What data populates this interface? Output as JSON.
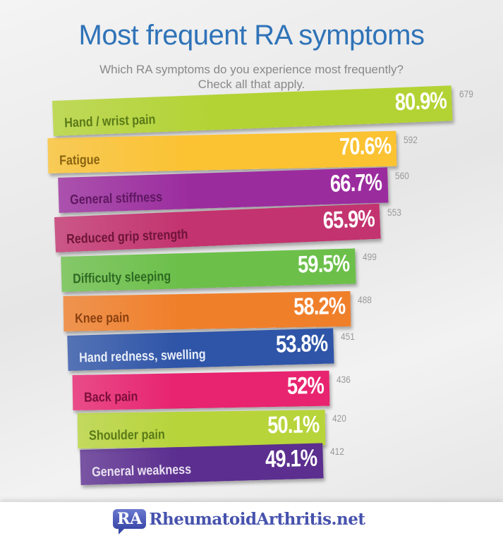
{
  "title": "Most frequent RA symptoms",
  "subtitle_line1": "Which RA symptoms do you experience most frequently?",
  "subtitle_line2": "Check all that apply.",
  "chart_data": {
    "type": "bar",
    "title": "Most frequent RA symptoms",
    "categories": [
      "Hand / wrist pain",
      "Fatigue",
      "General stiffness",
      "Reduced grip strength",
      "Difficulty sleeping",
      "Knee pain",
      "Hand redness, swelling",
      "Back pain",
      "Shoulder pain",
      "General weakness"
    ],
    "percent_labels": [
      "80.9%",
      "70.6%",
      "66.7%",
      "65.9%",
      "59.5%",
      "58.2%",
      "53.8%",
      "52%",
      "50.1%",
      "49.1%"
    ],
    "values": [
      80.9,
      70.6,
      66.7,
      65.9,
      59.5,
      58.2,
      53.8,
      52,
      50.1,
      49.1
    ],
    "counts": [
      679,
      592,
      560,
      553,
      499,
      488,
      451,
      436,
      420,
      412
    ],
    "colors": [
      "#b3d334",
      "#fbc232",
      "#9b2c9e",
      "#c3336f",
      "#6cc04a",
      "#f07f2a",
      "#2f55a8",
      "#e8236f",
      "#b7d43a",
      "#5b2e8f"
    ],
    "label_colors": [
      "#5a7a18",
      "#8a6410",
      "#5e1760",
      "#6e1538",
      "#2e6a22",
      "#8a4010",
      "#e8eef8",
      "#7a0f38",
      "#5a7a18",
      "#e8e0f0"
    ],
    "orientation": "horizontal"
  },
  "footer": {
    "logo_badge": "RA",
    "site_name": "RheumatoidArthritis.net"
  }
}
